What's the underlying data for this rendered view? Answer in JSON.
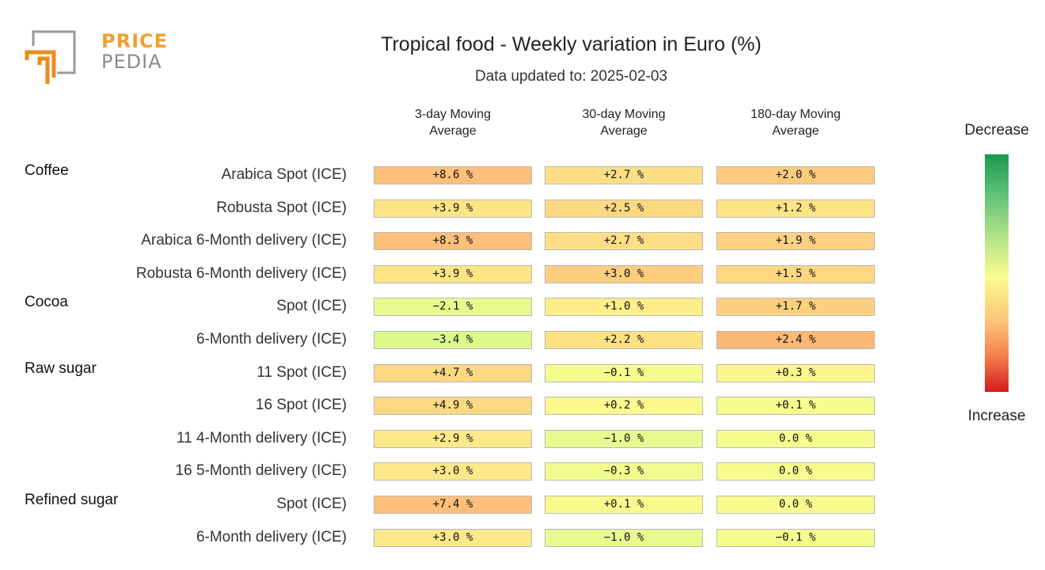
{
  "logo": {
    "line1": "PRICE",
    "line2": "PEDIA"
  },
  "chart_data": {
    "type": "heatmap",
    "title": "Tropical food - Weekly variation in Euro (%)",
    "subtitle": "Data updated to: 2025-02-03",
    "columns": [
      "3-day Moving Average",
      "30-day Moving Average",
      "180-day Moving Average"
    ],
    "column_lines": [
      [
        "3-day Moving",
        "Average"
      ],
      [
        "30-day Moving",
        "Average"
      ],
      [
        "180-day Moving",
        "Average"
      ]
    ],
    "legend": {
      "top": "Decrease",
      "bottom": "Increase",
      "position": "right"
    },
    "unit": "%",
    "groups": [
      {
        "name": "Coffee",
        "rows": [
          {
            "label": "Arabica Spot (ICE)",
            "values": [
              8.6,
              2.7,
              2.0
            ]
          },
          {
            "label": "Robusta Spot (ICE)",
            "values": [
              3.9,
              2.5,
              1.2
            ]
          },
          {
            "label": "Arabica 6-Month delivery (ICE)",
            "values": [
              8.3,
              2.7,
              1.9
            ]
          },
          {
            "label": "Robusta 6-Month delivery (ICE)",
            "values": [
              3.9,
              3.0,
              1.5
            ]
          }
        ]
      },
      {
        "name": "Cocoa",
        "rows": [
          {
            "label": "Spot (ICE)",
            "values": [
              -2.1,
              1.0,
              1.7
            ]
          },
          {
            "label": "6-Month delivery (ICE)",
            "values": [
              -3.4,
              2.2,
              2.4
            ]
          }
        ]
      },
      {
        "name": "Raw sugar",
        "rows": [
          {
            "label": "11 Spot (ICE)",
            "values": [
              4.7,
              -0.1,
              0.3
            ]
          },
          {
            "label": "16 Spot (ICE)",
            "values": [
              4.9,
              0.2,
              0.1
            ]
          },
          {
            "label": "11 4-Month delivery (ICE)",
            "values": [
              2.9,
              -1.0,
              0.0
            ]
          },
          {
            "label": "16 5-Month delivery (ICE)",
            "values": [
              3.0,
              -0.3,
              0.0
            ]
          }
        ]
      },
      {
        "name": "Refined sugar",
        "rows": [
          {
            "label": "Spot (ICE)",
            "values": [
              7.4,
              0.1,
              0.0
            ]
          },
          {
            "label": "6-Month delivery (ICE)",
            "values": [
              3.0,
              -1.0,
              -0.1
            ]
          }
        ]
      }
    ],
    "cell_colors": [
      [
        "#fdbf7a",
        "#fdde85",
        "#fdcb7e"
      ],
      [
        "#fde485",
        "#fdd882",
        "#fde485"
      ],
      [
        "#fdbf7a",
        "#fdde85",
        "#fdd182"
      ],
      [
        "#fde485",
        "#fdcd80",
        "#fdd782"
      ],
      [
        "#e6fa90",
        "#fdee8a",
        "#fdd07f"
      ],
      [
        "#dcf88c",
        "#fde183",
        "#fcb874"
      ],
      [
        "#fdd883",
        "#f6fc8e",
        "#fbf58d"
      ],
      [
        "#fdd883",
        "#fbf88d",
        "#f6fc8e"
      ],
      [
        "#fde889",
        "#e6fa90",
        "#f8fc8f"
      ],
      [
        "#fde889",
        "#f2fc8e",
        "#f8fc8f"
      ],
      [
        "#fdc07a",
        "#f9fa8e",
        "#f8fc8f"
      ],
      [
        "#fde889",
        "#e6fa90",
        "#f5fc8e"
      ]
    ]
  }
}
